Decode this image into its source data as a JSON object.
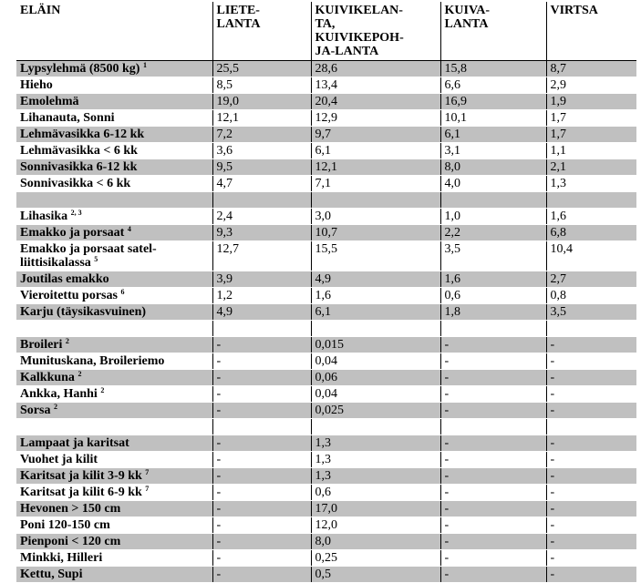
{
  "headers": [
    "ELÄIN",
    "LIETE-\nLANTA",
    "KUIVIKELAN-\nTA,\nKUIVIKEPOH-\nJA-LANTA",
    "KUIVA-\nLANTA",
    "VIRTSA"
  ],
  "rows": [
    {
      "name": "Lypsylehmä  (8500 kg)",
      "sup": "1",
      "v": [
        "25,5",
        "28,6",
        "15,8",
        "8,7"
      ],
      "shade": true
    },
    {
      "name": "Hieho",
      "sup": "",
      "v": [
        "8,5",
        "13,4",
        "6,6",
        "2,9"
      ],
      "shade": false
    },
    {
      "name": "Emolehmä",
      "sup": "",
      "v": [
        "19,0",
        "20,4",
        "16,9",
        "1,9"
      ],
      "shade": true
    },
    {
      "name": "Lihanauta, Sonni",
      "sup": "",
      "v": [
        "12,1",
        "12,9",
        "10,1",
        "1,7"
      ],
      "shade": false
    },
    {
      "name": "Lehmävasikka 6-12 kk",
      "sup": "",
      "v": [
        "7,2",
        "9,7",
        "6,1",
        "1,7"
      ],
      "shade": true
    },
    {
      "name": "Lehmävasikka < 6 kk",
      "sup": "",
      "v": [
        "3,6",
        "6,1",
        "3,1",
        "1,1"
      ],
      "shade": false
    },
    {
      "name": "Sonnivasikka 6-12 kk",
      "sup": "",
      "v": [
        "9,5",
        "12,1",
        "8,0",
        "2,1"
      ],
      "shade": true
    },
    {
      "name": "Sonnivasikka < 6 kk",
      "sup": "",
      "v": [
        "4,7",
        "7,1",
        "4,0",
        "1,3"
      ],
      "shade": false
    },
    {
      "spacer": true,
      "shade": true
    },
    {
      "name": "Lihasika",
      "sup": "2, 3",
      "v": [
        "2,4",
        "3,0",
        "1,0",
        "1,6"
      ],
      "shade": false
    },
    {
      "name": "Emakko ja porsaat",
      "sup": "4",
      "v": [
        "9,3",
        "10,7",
        "2,2",
        "6,8"
      ],
      "shade": true
    },
    {
      "name": "Emakko ja porsaat satel-\nliittisikalassa",
      "sup": "5",
      "v": [
        "12,7",
        "15,5",
        "3,5",
        "10,4"
      ],
      "shade": false,
      "tall": true
    },
    {
      "name": "Joutilas emakko",
      "sup": "",
      "v": [
        "3,9",
        "4,9",
        "1,6",
        "2,7"
      ],
      "shade": true
    },
    {
      "name": "Vieroitettu porsas",
      "sup": "6",
      "v": [
        "1,2",
        "1,6",
        "0,6",
        "0,8"
      ],
      "shade": false
    },
    {
      "name": "Karju (täysikasvuinen)",
      "sup": "",
      "v": [
        "4,9",
        "6,1",
        "1,8",
        "3,5"
      ],
      "shade": true
    },
    {
      "spacer": true,
      "shade": false
    },
    {
      "name": "Broileri",
      "sup": "2",
      "v": [
        "-",
        "0,015",
        "-",
        "-"
      ],
      "shade": true
    },
    {
      "name": "Munituskana, Broileriemo",
      "sup": "",
      "v": [
        "-",
        "0,04",
        "-",
        "-"
      ],
      "shade": false
    },
    {
      "name": "Kalkkuna",
      "sup": "2",
      "v": [
        "-",
        "0,06",
        "-",
        "-"
      ],
      "shade": true
    },
    {
      "name": "Ankka, Hanhi",
      "sup": "2",
      "v": [
        "-",
        "0,04",
        "-",
        "-"
      ],
      "shade": false
    },
    {
      "name": "Sorsa",
      "sup": "2",
      "v": [
        "-",
        "0,025",
        "-",
        "-"
      ],
      "shade": true
    },
    {
      "spacer": true,
      "shade": false
    },
    {
      "name": "Lampaat ja karitsat",
      "sup": "",
      "v": [
        "-",
        "1,3",
        "-",
        "-"
      ],
      "shade": true
    },
    {
      "name": "Vuohet ja kilit",
      "sup": "",
      "v": [
        "-",
        "1,3",
        "-",
        "-"
      ],
      "shade": false
    },
    {
      "name": "Karitsat ja kilit 3-9 kk",
      "sup": "7",
      "v": [
        "-",
        "1,3",
        "-",
        "-"
      ],
      "shade": true
    },
    {
      "name": "Karitsat ja kilit 6-9 kk",
      "sup": "7",
      "v": [
        "-",
        "0,6",
        "-",
        "-"
      ],
      "shade": false
    },
    {
      "name": "Hevonen > 150 cm",
      "sup": "",
      "v": [
        "-",
        "17,0",
        "-",
        "-"
      ],
      "shade": true
    },
    {
      "name": "Poni 120-150 cm",
      "sup": "",
      "v": [
        "-",
        "12,0",
        "-",
        "-"
      ],
      "shade": false
    },
    {
      "name": "Pienponi < 120 cm",
      "sup": "",
      "v": [
        "-",
        "8,0",
        "-",
        "-"
      ],
      "shade": true
    },
    {
      "name": "Minkki, Hilleri",
      "sup": "",
      "v": [
        "-",
        "0,25",
        "-",
        "-"
      ],
      "shade": false
    },
    {
      "name": "Kettu, Supi",
      "sup": "",
      "v": [
        "-",
        "0,5",
        "-",
        "-"
      ],
      "shade": true
    }
  ]
}
